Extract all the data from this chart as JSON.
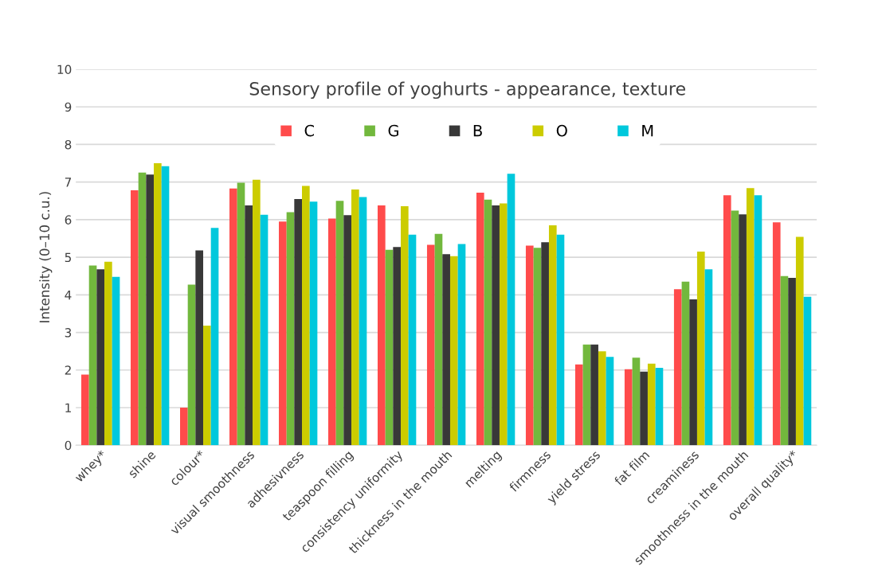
{
  "chart_data": {
    "type": "bar",
    "title": "Sensory profile of yoghurts - appearance, texture",
    "ylabel": "Intensity (0–10 c.u.)",
    "categories": [
      "whey*",
      "shine",
      "colour*",
      "visual smoothness",
      "adhesivness",
      "teaspoon filling",
      "consistency uniformity",
      "thickness in the mouth",
      "melting",
      "firmness",
      "yield stress",
      "fat film",
      "creaminess",
      "smoothness in the mouth",
      "overall quality*"
    ],
    "series": [
      {
        "name": "C",
        "color": "#ff4b4b",
        "values": [
          1.88,
          6.78,
          1.0,
          6.83,
          5.95,
          6.03,
          6.38,
          5.33,
          6.72,
          5.31,
          2.15,
          2.02,
          4.15,
          6.65,
          5.93
        ]
      },
      {
        "name": "G",
        "color": "#72b83d",
        "values": [
          4.78,
          7.25,
          4.27,
          6.98,
          6.2,
          6.5,
          5.2,
          5.62,
          6.53,
          5.25,
          2.68,
          2.33,
          4.35,
          6.24,
          4.5
        ]
      },
      {
        "name": "B",
        "color": "#383838",
        "values": [
          4.68,
          7.2,
          5.18,
          6.38,
          6.55,
          6.12,
          5.27,
          5.08,
          6.38,
          5.4,
          2.68,
          1.96,
          3.88,
          6.14,
          4.45
        ]
      },
      {
        "name": "O",
        "color": "#cccc00",
        "values": [
          4.88,
          7.5,
          3.18,
          7.06,
          6.9,
          6.8,
          6.36,
          5.03,
          6.43,
          5.85,
          2.5,
          2.17,
          5.15,
          6.84,
          5.54
        ]
      },
      {
        "name": "M",
        "color": "#00c8dc",
        "values": [
          4.48,
          7.42,
          5.78,
          6.13,
          6.48,
          6.6,
          5.6,
          5.35,
          7.22,
          5.6,
          2.35,
          2.06,
          4.68,
          6.65,
          3.95
        ]
      }
    ],
    "ylim": [
      0,
      10
    ],
    "yticks": [
      0,
      1,
      2,
      3,
      4,
      5,
      6,
      7,
      8,
      9,
      10
    ],
    "grid": "y",
    "legend": "top"
  }
}
